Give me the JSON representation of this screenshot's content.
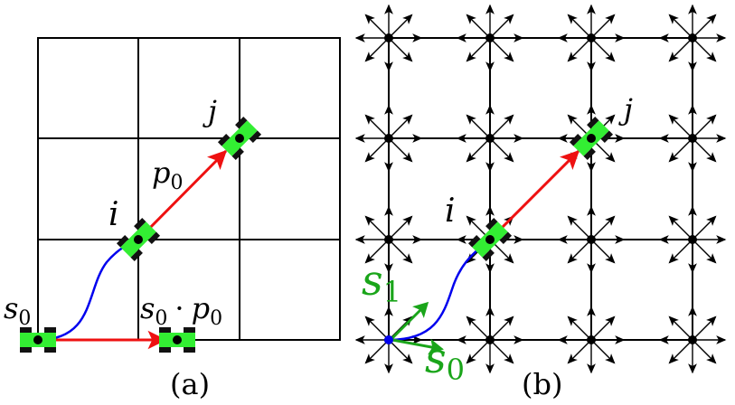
{
  "panel_a": {
    "caption": "(a)",
    "labels": {
      "s0": {
        "main": "s",
        "sub": "0"
      },
      "i": "i",
      "j": "j",
      "p0": {
        "main": "p",
        "sub": "0"
      },
      "s0p0": {
        "main": "s",
        "sub": "0",
        "dot": "·",
        "main2": "p",
        "sub2": "0"
      }
    }
  },
  "panel_b": {
    "caption": "(b)",
    "labels": {
      "i": "i",
      "j": "j",
      "s1": {
        "main": "s",
        "sub": "1"
      },
      "s0": {
        "main": "s",
        "sub": "0"
      }
    }
  },
  "colors": {
    "grid": "#000000",
    "robot_body": "#33ee33",
    "path_blue": "#0000ee",
    "arrow_red": "#ee1111",
    "label_green": "#1aa51a"
  }
}
